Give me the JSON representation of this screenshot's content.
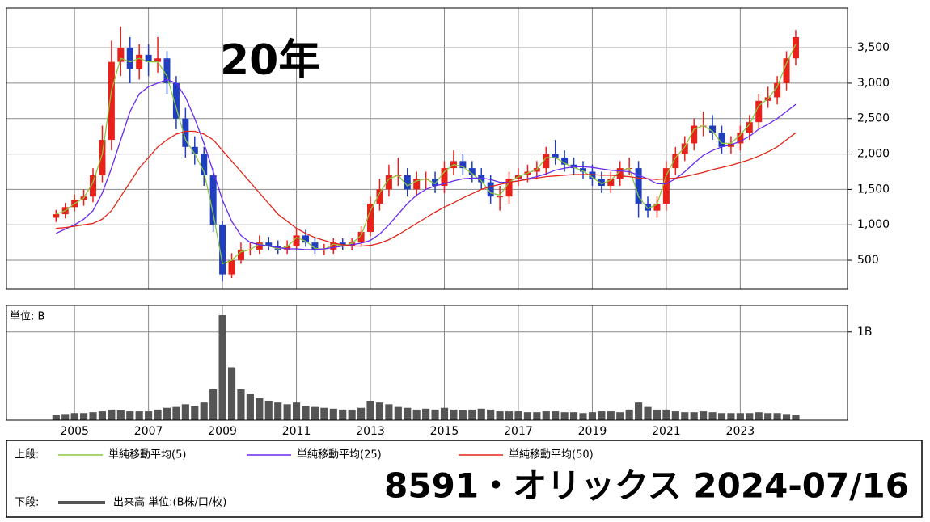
{
  "chart_data": [
    {
      "type": "candlestick",
      "title": "20年",
      "x": [
        2004.5,
        2004.75,
        2005,
        2005.25,
        2005.5,
        2005.75,
        2006,
        2006.25,
        2006.5,
        2006.75,
        2007,
        2007.25,
        2007.5,
        2007.75,
        2008,
        2008.25,
        2008.5,
        2008.75,
        2009,
        2009.25,
        2009.5,
        2009.75,
        2010,
        2010.25,
        2010.5,
        2010.75,
        2011,
        2011.25,
        2011.5,
        2011.75,
        2012,
        2012.25,
        2012.5,
        2012.75,
        2013,
        2013.25,
        2013.5,
        2013.75,
        2014,
        2014.25,
        2014.5,
        2014.75,
        2015,
        2015.25,
        2015.5,
        2015.75,
        2016,
        2016.25,
        2016.5,
        2016.75,
        2017,
        2017.25,
        2017.5,
        2017.75,
        2018,
        2018.25,
        2018.5,
        2018.75,
        2019,
        2019.25,
        2019.5,
        2019.75,
        2020,
        2020.25,
        2020.5,
        2020.75,
        2021,
        2021.25,
        2021.5,
        2021.75,
        2022,
        2022.25,
        2022.5,
        2022.75,
        2023,
        2023.25,
        2023.5,
        2023.75,
        2024,
        2024.25,
        2024.5
      ],
      "open": [
        1100,
        1150,
        1250,
        1350,
        1400,
        1700,
        2200,
        3300,
        3500,
        3200,
        3400,
        3300,
        3350,
        3000,
        2500,
        2100,
        2000,
        1700,
        1000,
        300,
        500,
        650,
        650,
        750,
        700,
        650,
        700,
        850,
        750,
        650,
        650,
        750,
        700,
        750,
        900,
        1300,
        1500,
        1700,
        1700,
        1500,
        1650,
        1650,
        1550,
        1800,
        1900,
        1800,
        1700,
        1600,
        1400,
        1400,
        1650,
        1700,
        1750,
        1800,
        2000,
        1950,
        1850,
        1800,
        1750,
        1650,
        1550,
        1650,
        1800,
        1800,
        1300,
        1200,
        1300,
        1800,
        2000,
        2150,
        2400,
        2400,
        2300,
        2100,
        2150,
        2300,
        2450,
        2750,
        2800,
        3000,
        3350
      ],
      "high": [
        1210,
        1310,
        1430,
        1500,
        1800,
        2400,
        3600,
        3800,
        3650,
        3550,
        3550,
        3650,
        3450,
        3100,
        2650,
        2250,
        2100,
        1800,
        1050,
        600,
        750,
        750,
        850,
        830,
        780,
        780,
        950,
        930,
        810,
        730,
        810,
        810,
        810,
        980,
        1400,
        1650,
        1850,
        1950,
        1800,
        1750,
        1750,
        1750,
        1900,
        2050,
        2000,
        1900,
        1800,
        1700,
        1550,
        1750,
        1800,
        1850,
        1900,
        2100,
        2200,
        2050,
        1950,
        1900,
        1850,
        1750,
        1750,
        1900,
        1950,
        1900,
        1400,
        1400,
        1900,
        2100,
        2250,
        2500,
        2600,
        2550,
        2400,
        2250,
        2400,
        2550,
        2850,
        2950,
        3100,
        3450,
        3750
      ],
      "low": [
        1040,
        1090,
        1190,
        1270,
        1320,
        1600,
        2050,
        3100,
        3000,
        3050,
        3100,
        3150,
        2850,
        2350,
        1950,
        1850,
        1550,
        900,
        200,
        250,
        450,
        570,
        590,
        640,
        590,
        590,
        640,
        690,
        590,
        570,
        590,
        640,
        640,
        690,
        840,
        1200,
        1400,
        1550,
        1400,
        1400,
        1500,
        1450,
        1450,
        1700,
        1700,
        1600,
        1500,
        1300,
        1200,
        1300,
        1550,
        1600,
        1650,
        1700,
        1850,
        1750,
        1700,
        1650,
        1550,
        1450,
        1450,
        1550,
        1700,
        1100,
        1100,
        1100,
        1200,
        1700,
        1900,
        2050,
        2250,
        2200,
        2000,
        2000,
        2050,
        2200,
        2350,
        2650,
        2700,
        2900,
        3250
      ],
      "close": [
        1150,
        1250,
        1350,
        1400,
        1700,
        2200,
        3300,
        3500,
        3200,
        3400,
        3300,
        3350,
        3000,
        2500,
        2100,
        2000,
        1700,
        1000,
        300,
        500,
        650,
        650,
        750,
        700,
        650,
        700,
        850,
        750,
        650,
        650,
        750,
        700,
        750,
        900,
        1300,
        1500,
        1700,
        1700,
        1500,
        1650,
        1650,
        1550,
        1800,
        1900,
        1800,
        1700,
        1600,
        1400,
        1400,
        1650,
        1700,
        1750,
        1800,
        2000,
        1950,
        1850,
        1800,
        1750,
        1650,
        1550,
        1650,
        1800,
        1800,
        1300,
        1200,
        1300,
        1800,
        2000,
        2150,
        2400,
        2400,
        2300,
        2100,
        2150,
        2300,
        2450,
        2750,
        2800,
        3000,
        3350,
        3650
      ],
      "up_color": "#e8211a",
      "down_color": "#1f3fbf",
      "series": [
        {
          "name": "単純移動平均(5)",
          "color": "#8cc63e",
          "values": [
            1150,
            1200,
            1300,
            1380,
            1600,
            2000,
            2900,
            3350,
            3300,
            3350,
            3300,
            3300,
            3100,
            2650,
            2200,
            2000,
            1750,
            1150,
            450,
            500,
            620,
            650,
            730,
            700,
            660,
            690,
            820,
            770,
            670,
            650,
            730,
            700,
            740,
            850,
            1200,
            1450,
            1650,
            1700,
            1550,
            1620,
            1650,
            1580,
            1750,
            1850,
            1820,
            1720,
            1620,
            1450,
            1420,
            1600,
            1680,
            1730,
            1780,
            1950,
            1950,
            1870,
            1810,
            1760,
            1670,
            1580,
            1630,
            1760,
            1800,
            1400,
            1230,
            1290,
            1700,
            1950,
            2100,
            2350,
            2400,
            2320,
            2150,
            2150,
            2270,
            2420,
            2680,
            2780,
            2950,
            3280,
            3550
          ]
        },
        {
          "name": "単純移動平均(25)",
          "color": "#6a2af0",
          "values": [
            880,
            940,
            1000,
            1080,
            1200,
            1450,
            1800,
            2200,
            2600,
            2850,
            2950,
            3000,
            3050,
            3000,
            2800,
            2500,
            2150,
            1750,
            1350,
            1050,
            850,
            750,
            720,
            700,
            680,
            660,
            660,
            650,
            650,
            660,
            680,
            700,
            720,
            740,
            780,
            870,
            1000,
            1150,
            1300,
            1420,
            1500,
            1550,
            1580,
            1620,
            1650,
            1660,
            1660,
            1640,
            1600,
            1600,
            1620,
            1650,
            1680,
            1720,
            1770,
            1800,
            1820,
            1820,
            1810,
            1790,
            1770,
            1760,
            1750,
            1700,
            1650,
            1580,
            1580,
            1650,
            1750,
            1870,
            1980,
            2050,
            2100,
            2130,
            2180,
            2250,
            2350,
            2420,
            2500,
            2600,
            2700
          ]
        },
        {
          "name": "単純移動平均(50)",
          "color": "#e32417",
          "values": [
            950,
            960,
            980,
            1000,
            1020,
            1080,
            1200,
            1400,
            1600,
            1800,
            1950,
            2100,
            2200,
            2280,
            2320,
            2320,
            2280,
            2200,
            2050,
            1900,
            1750,
            1600,
            1450,
            1300,
            1150,
            1050,
            950,
            880,
            820,
            780,
            740,
            720,
            700,
            700,
            710,
            740,
            790,
            860,
            940,
            1020,
            1100,
            1180,
            1250,
            1310,
            1380,
            1440,
            1500,
            1540,
            1570,
            1600,
            1620,
            1640,
            1660,
            1680,
            1690,
            1700,
            1710,
            1710,
            1710,
            1700,
            1700,
            1690,
            1680,
            1660,
            1650,
            1640,
            1650,
            1660,
            1680,
            1710,
            1740,
            1780,
            1810,
            1840,
            1880,
            1920,
            1970,
            2030,
            2100,
            2200,
            2300
          ]
        }
      ],
      "xlim": [
        2003.16,
        2025.9
      ],
      "xticks": [
        2005,
        2007,
        2009,
        2011,
        2013,
        2015,
        2017,
        2019,
        2021,
        2023
      ],
      "ylim": [
        90,
        4060
      ],
      "yticks": [
        500,
        {
          "value": 1000,
          "label": "1,000"
        },
        {
          "value": 1500,
          "label": "1,500"
        },
        {
          "value": 2000,
          "label": "2,000"
        },
        {
          "value": 2500,
          "label": "2,500"
        },
        {
          "value": 3000,
          "label": "3,000"
        },
        {
          "value": 3500,
          "label": "3,500"
        }
      ],
      "grid": true
    },
    {
      "type": "bar",
      "unit_label": "単位: B",
      "x": [
        2004.5,
        2004.75,
        2005,
        2005.25,
        2005.5,
        2005.75,
        2006,
        2006.25,
        2006.5,
        2006.75,
        2007,
        2007.25,
        2007.5,
        2007.75,
        2008,
        2008.25,
        2008.5,
        2008.75,
        2009,
        2009.25,
        2009.5,
        2009.75,
        2010,
        2010.25,
        2010.5,
        2010.75,
        2011,
        2011.25,
        2011.5,
        2011.75,
        2012,
        2012.25,
        2012.5,
        2012.75,
        2013,
        2013.25,
        2013.5,
        2013.75,
        2014,
        2014.25,
        2014.5,
        2014.75,
        2015,
        2015.25,
        2015.5,
        2015.75,
        2016,
        2016.25,
        2016.5,
        2016.75,
        2017,
        2017.25,
        2017.5,
        2017.75,
        2018,
        2018.25,
        2018.5,
        2018.75,
        2019,
        2019.25,
        2019.5,
        2019.75,
        2020,
        2020.25,
        2020.5,
        2020.75,
        2021,
        2021.25,
        2021.5,
        2021.75,
        2022,
        2022.25,
        2022.5,
        2022.75,
        2023,
        2023.25,
        2023.5,
        2023.75,
        2024,
        2024.25,
        2024.5
      ],
      "series": [
        {
          "name": "出来高 単位:(B株/口/枚)",
          "color": "#555555",
          "values": [
            0.06,
            0.07,
            0.08,
            0.08,
            0.09,
            0.1,
            0.12,
            0.11,
            0.1,
            0.1,
            0.1,
            0.12,
            0.14,
            0.15,
            0.18,
            0.16,
            0.2,
            0.35,
            1.19,
            0.6,
            0.35,
            0.3,
            0.25,
            0.22,
            0.2,
            0.18,
            0.2,
            0.16,
            0.15,
            0.14,
            0.13,
            0.12,
            0.12,
            0.14,
            0.22,
            0.2,
            0.18,
            0.15,
            0.14,
            0.12,
            0.13,
            0.12,
            0.14,
            0.12,
            0.11,
            0.12,
            0.13,
            0.12,
            0.1,
            0.1,
            0.1,
            0.09,
            0.09,
            0.1,
            0.1,
            0.09,
            0.09,
            0.08,
            0.09,
            0.1,
            0.1,
            0.09,
            0.12,
            0.2,
            0.15,
            0.12,
            0.12,
            0.1,
            0.09,
            0.09,
            0.1,
            0.09,
            0.08,
            0.08,
            0.08,
            0.08,
            0.09,
            0.08,
            0.08,
            0.07,
            0.06
          ]
        }
      ],
      "xlim": [
        2003.16,
        2025.9
      ],
      "xticks": [
        2005,
        2007,
        2009,
        2011,
        2013,
        2015,
        2017,
        2019,
        2021,
        2023
      ],
      "ylim": [
        0,
        1.3
      ],
      "yticks": [
        {
          "value": 1,
          "label": "1B"
        }
      ],
      "grid": true
    }
  ],
  "legend_box": {
    "upper_label": "上段:",
    "lower_label": "下段:"
  },
  "caption": "8591・オリックス 2024-07/16"
}
